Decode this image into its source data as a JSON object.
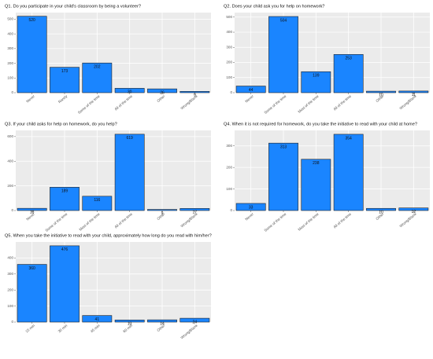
{
  "chart_data": [
    {
      "type": "bar",
      "title": "Q1. Do you participate in your child's classroom by being a volunteer?",
      "categories": [
        "Never",
        "Rarely",
        "Some of the time",
        "All of the time",
        "Other",
        "Wrong/Blank"
      ],
      "values": [
        520,
        173,
        202,
        30,
        26,
        9
      ],
      "color": "#1a85ff",
      "ylim": [
        0,
        545
      ],
      "yticks": [
        0,
        100,
        200,
        300,
        400,
        500
      ],
      "grid": true
    },
    {
      "type": "bar",
      "title": "Q2. Does your child ask you for help on homework?",
      "categories": [
        "Never",
        "Some of the time",
        "Most of the time",
        "All of the time",
        "Other",
        "Wrong/Blank"
      ],
      "values": [
        44,
        504,
        139,
        253,
        10,
        11
      ],
      "color": "#1a85ff",
      "ylim": [
        0,
        530
      ],
      "yticks": [
        0,
        100,
        200,
        300,
        400,
        500
      ],
      "grid": true
    },
    {
      "type": "bar",
      "title": "Q3. If your child asks for help on homework, do you help?",
      "categories": [
        "Never",
        "Some of the time",
        "Most of the time",
        "All of the time",
        "Other",
        "Wrong/Blank"
      ],
      "values": [
        18,
        189,
        116,
        619,
        9,
        17
      ],
      "color": "#1a85ff",
      "ylim": [
        0,
        650
      ],
      "yticks": [
        0,
        200,
        400,
        600
      ],
      "grid": true
    },
    {
      "type": "bar",
      "title": "Q4. When it is not required for homework, do you take the initiative to read with your child at home?",
      "categories": [
        "Never",
        "Some of the time",
        "Most of the time",
        "All of the time",
        "Other",
        "Wrong/Blank"
      ],
      "values": [
        33,
        313,
        238,
        354,
        10,
        12
      ],
      "color": "#1a85ff",
      "ylim": [
        0,
        372
      ],
      "yticks": [
        0,
        100,
        200,
        300
      ],
      "grid": true
    },
    {
      "type": "bar",
      "title": "Q5. When you take the initiative to read with your child, approximately how long do you read with him/her?",
      "categories": [
        "15 min",
        "30 min",
        "45 min",
        "60 min",
        "Other",
        "Wrong/Blank"
      ],
      "values": [
        360,
        476,
        41,
        13,
        14,
        24
      ],
      "color": "#1a85ff",
      "ylim": [
        0,
        500
      ],
      "yticks": [
        0,
        100,
        200,
        300,
        400
      ],
      "grid": true
    }
  ]
}
